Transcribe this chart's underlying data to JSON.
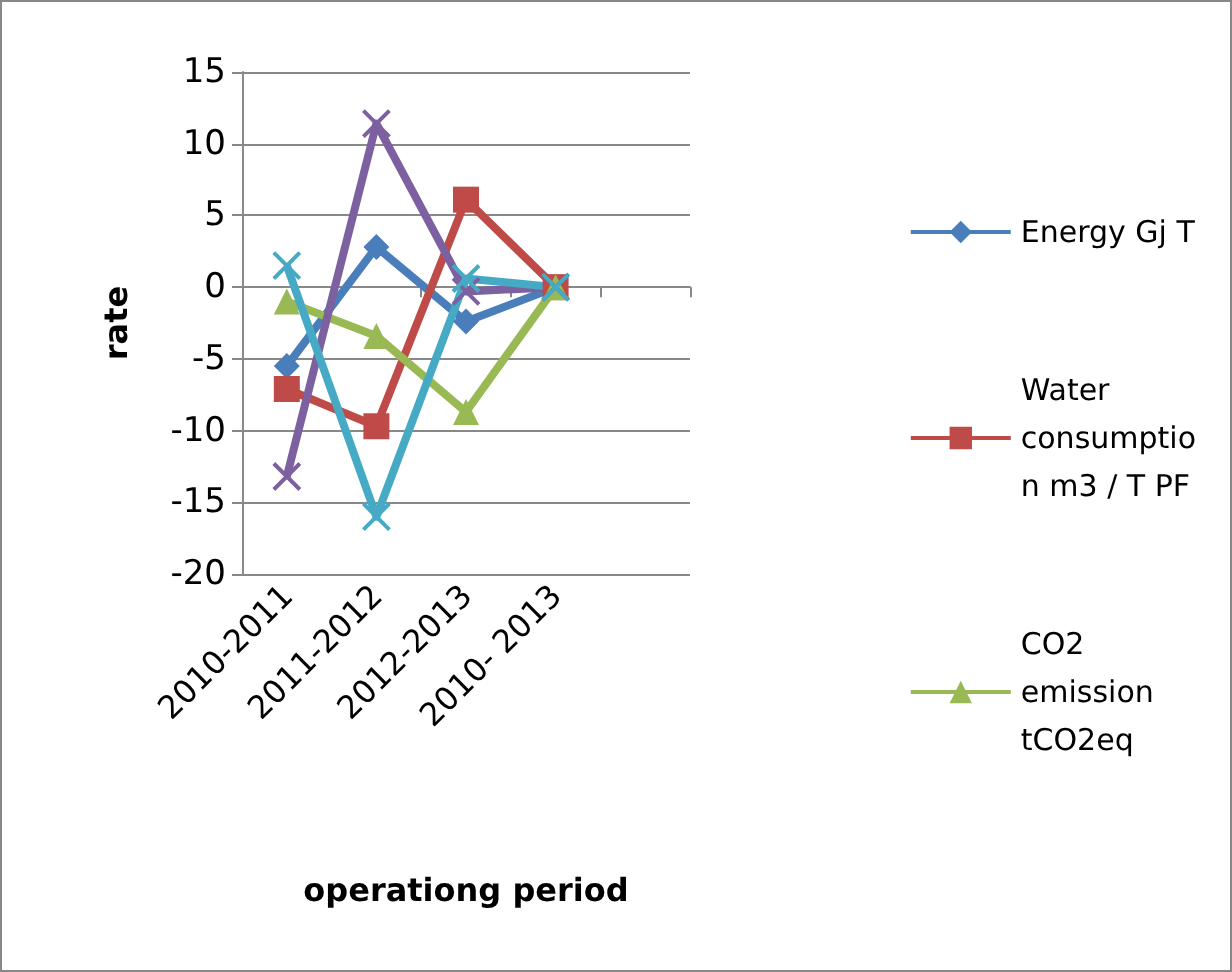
{
  "chart_data": {
    "type": "line",
    "xlabel": "operationg period",
    "ylabel": "rate",
    "categories": [
      "2010-2011",
      "2011-2012",
      "2012-2013",
      "2010- 2013",
      null
    ],
    "ylim": [
      -20,
      15
    ],
    "yticks": [
      -20,
      -15,
      -10,
      -5,
      0,
      5,
      10,
      15
    ],
    "grid": "y",
    "legend": "right",
    "series": [
      {
        "name": "Energy Gj T",
        "color": "#4a7ebb",
        "marker": "diamond",
        "values": [
          -5.5,
          2.8,
          -2.4,
          0,
          null
        ]
      },
      {
        "name": "Water consumptio n m3 / T PF",
        "color": "#be4b48",
        "marker": "square",
        "values": [
          -7.1,
          -9.7,
          6.1,
          0,
          null
        ]
      },
      {
        "name": "CO2 emission tCO2eq",
        "color": "#98b954",
        "marker": "triangle",
        "values": [
          -1,
          -3.4,
          -8.7,
          0,
          null
        ]
      },
      {
        "color": "#7d60a0",
        "marker": "cross",
        "values": [
          -13.2,
          11.4,
          -0.3,
          0,
          null
        ]
      },
      {
        "color": "#46aac5",
        "marker": "cross",
        "values": [
          1.5,
          -16,
          0.6,
          0,
          null
        ]
      }
    ]
  }
}
